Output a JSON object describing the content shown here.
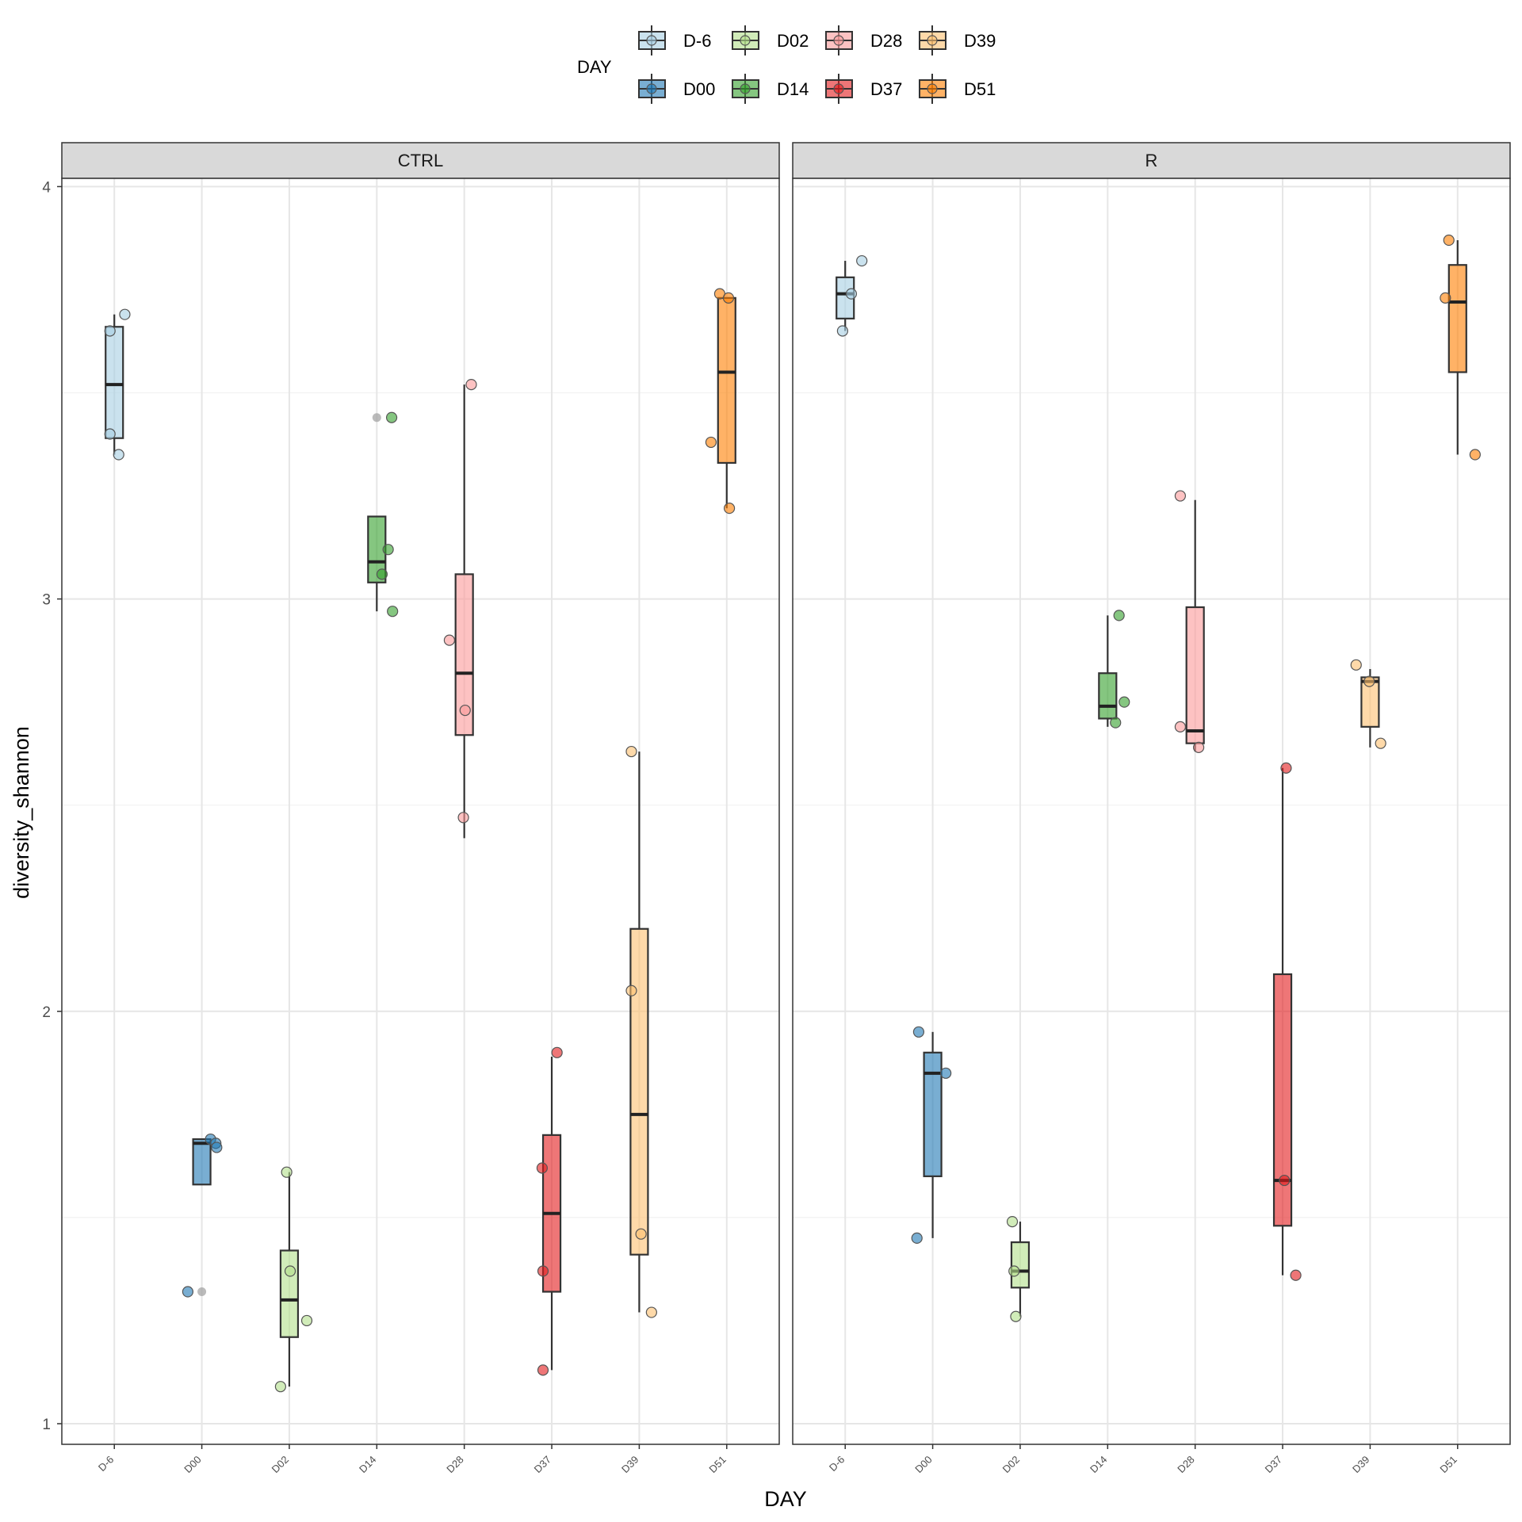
{
  "chart_data": {
    "type": "box",
    "xlabel": "DAY",
    "ylabel": "diversity_shannon",
    "ylim": [
      0.95,
      4.02
    ],
    "yticks": [
      1,
      2,
      3,
      4
    ],
    "grid": true,
    "legend": {
      "title": "DAY",
      "placement": "top",
      "entries": [
        {
          "label": "D-6",
          "color": "#A6CEE3"
        },
        {
          "label": "D02",
          "color": "#B2DF8A"
        },
        {
          "label": "D28",
          "color": "#FB9A99"
        },
        {
          "label": "D39",
          "color": "#FDBF6F"
        },
        {
          "label": "D00",
          "color": "#1F78B4"
        },
        {
          "label": "D14",
          "color": "#33A02C"
        },
        {
          "label": "D37",
          "color": "#E31A1C"
        },
        {
          "label": "D51",
          "color": "#FF7F00"
        }
      ]
    },
    "categories": [
      "D-6",
      "D00",
      "D02",
      "D14",
      "D28",
      "D37",
      "D39",
      "D51"
    ],
    "colors": {
      "D-6": "#A6CEE3",
      "D00": "#1F78B4",
      "D02": "#B2DF8A",
      "D14": "#33A02C",
      "D28": "#FB9A99",
      "D37": "#E31A1C",
      "D39": "#FDBF6F",
      "D51": "#FF7F00"
    },
    "facets": [
      {
        "name": "CTRL",
        "groups": [
          {
            "day": "D-6",
            "lower": 3.35,
            "q1": 3.39,
            "median": 3.52,
            "q3": 3.66,
            "upper": 3.69,
            "outliers": [],
            "points": [
              {
                "dx": -0.05,
                "y": 3.65
              },
              {
                "dx": 0.12,
                "y": 3.69
              },
              {
                "dx": -0.05,
                "y": 3.4
              },
              {
                "dx": 0.05,
                "y": 3.35
              }
            ]
          },
          {
            "day": "D00",
            "lower": 1.58,
            "q1": 1.58,
            "median": 1.68,
            "q3": 1.69,
            "upper": 1.69,
            "outliers": [
              1.32
            ],
            "points": [
              {
                "dx": -0.16,
                "y": 1.32
              },
              {
                "dx": 0.1,
                "y": 1.69
              },
              {
                "dx": 0.16,
                "y": 1.68
              },
              {
                "dx": 0.17,
                "y": 1.67
              }
            ]
          },
          {
            "day": "D02",
            "lower": 1.09,
            "q1": 1.21,
            "median": 1.3,
            "q3": 1.42,
            "upper": 1.61,
            "outliers": [],
            "points": [
              {
                "dx": -0.03,
                "y": 1.61
              },
              {
                "dx": 0.01,
                "y": 1.37
              },
              {
                "dx": 0.2,
                "y": 1.25
              },
              {
                "dx": -0.1,
                "y": 1.09
              }
            ]
          },
          {
            "day": "D14",
            "lower": 2.97,
            "q1": 3.04,
            "median": 3.09,
            "q3": 3.2,
            "upper": 3.2,
            "outliers": [
              3.44
            ],
            "points": [
              {
                "dx": 0.17,
                "y": 3.44
              },
              {
                "dx": 0.13,
                "y": 3.12
              },
              {
                "dx": 0.06,
                "y": 3.06
              },
              {
                "dx": 0.18,
                "y": 2.97
              }
            ]
          },
          {
            "day": "D28",
            "lower": 2.42,
            "q1": 2.67,
            "median": 2.82,
            "q3": 3.06,
            "upper": 3.52,
            "outliers": [],
            "points": [
              {
                "dx": 0.08,
                "y": 3.52
              },
              {
                "dx": -0.17,
                "y": 2.9
              },
              {
                "dx": 0.01,
                "y": 2.73
              },
              {
                "dx": -0.01,
                "y": 2.47
              }
            ]
          },
          {
            "day": "D37",
            "lower": 1.13,
            "q1": 1.32,
            "median": 1.51,
            "q3": 1.7,
            "upper": 1.89,
            "outliers": [],
            "points": [
              {
                "dx": 0.06,
                "y": 1.9
              },
              {
                "dx": -0.11,
                "y": 1.62
              },
              {
                "dx": -0.1,
                "y": 1.37
              },
              {
                "dx": -0.1,
                "y": 1.13
              }
            ]
          },
          {
            "day": "D39",
            "lower": 1.27,
            "q1": 1.41,
            "median": 1.75,
            "q3": 2.2,
            "upper": 2.63,
            "outliers": [],
            "points": [
              {
                "dx": -0.09,
                "y": 2.63
              },
              {
                "dx": -0.09,
                "y": 2.05
              },
              {
                "dx": 0.02,
                "y": 1.46
              },
              {
                "dx": 0.14,
                "y": 1.27
              }
            ]
          },
          {
            "day": "D51",
            "lower": 3.22,
            "q1": 3.33,
            "median": 3.55,
            "q3": 3.73,
            "upper": 3.73,
            "outliers": [],
            "points": [
              {
                "dx": -0.08,
                "y": 3.74
              },
              {
                "dx": 0.02,
                "y": 3.73
              },
              {
                "dx": -0.18,
                "y": 3.38
              },
              {
                "dx": 0.03,
                "y": 3.22
              }
            ]
          }
        ]
      },
      {
        "name": "R",
        "groups": [
          {
            "day": "D-6",
            "lower": 3.65,
            "q1": 3.68,
            "median": 3.74,
            "q3": 3.78,
            "upper": 3.82,
            "outliers": [],
            "points": [
              {
                "dx": 0.19,
                "y": 3.82
              },
              {
                "dx": 0.07,
                "y": 3.74
              },
              {
                "dx": -0.03,
                "y": 3.65
              }
            ]
          },
          {
            "day": "D00",
            "lower": 1.45,
            "q1": 1.6,
            "median": 1.85,
            "q3": 1.9,
            "upper": 1.95,
            "outliers": [],
            "points": [
              {
                "dx": -0.16,
                "y": 1.95
              },
              {
                "dx": 0.15,
                "y": 1.85
              },
              {
                "dx": -0.18,
                "y": 1.45
              }
            ]
          },
          {
            "day": "D02",
            "lower": 1.26,
            "q1": 1.33,
            "median": 1.37,
            "q3": 1.44,
            "upper": 1.49,
            "outliers": [],
            "points": [
              {
                "dx": -0.09,
                "y": 1.49
              },
              {
                "dx": -0.07,
                "y": 1.37
              },
              {
                "dx": -0.05,
                "y": 1.26
              }
            ]
          },
          {
            "day": "D14",
            "lower": 2.69,
            "q1": 2.71,
            "median": 2.74,
            "q3": 2.82,
            "upper": 2.96,
            "outliers": [],
            "points": [
              {
                "dx": 0.13,
                "y": 2.96
              },
              {
                "dx": 0.19,
                "y": 2.75
              },
              {
                "dx": 0.09,
                "y": 2.7
              }
            ]
          },
          {
            "day": "D28",
            "lower": 2.63,
            "q1": 2.65,
            "median": 2.68,
            "q3": 2.98,
            "upper": 3.24,
            "outliers": [],
            "points": [
              {
                "dx": -0.17,
                "y": 3.25
              },
              {
                "dx": -0.17,
                "y": 2.69
              },
              {
                "dx": 0.04,
                "y": 2.64
              }
            ]
          },
          {
            "day": "D37",
            "lower": 1.36,
            "q1": 1.48,
            "median": 1.59,
            "q3": 2.09,
            "upper": 2.59,
            "outliers": [],
            "points": [
              {
                "dx": 0.04,
                "y": 2.59
              },
              {
                "dx": 0.02,
                "y": 1.59
              },
              {
                "dx": 0.15,
                "y": 1.36
              }
            ]
          },
          {
            "day": "D39",
            "lower": 2.64,
            "q1": 2.69,
            "median": 2.8,
            "q3": 2.81,
            "upper": 2.83,
            "outliers": [],
            "points": [
              {
                "dx": -0.16,
                "y": 2.84
              },
              {
                "dx": -0.01,
                "y": 2.8
              },
              {
                "dx": 0.12,
                "y": 2.65
              }
            ]
          },
          {
            "day": "D51",
            "lower": 3.35,
            "q1": 3.55,
            "median": 3.72,
            "q3": 3.81,
            "upper": 3.87,
            "outliers": [],
            "points": [
              {
                "dx": -0.1,
                "y": 3.87
              },
              {
                "dx": -0.14,
                "y": 3.73
              },
              {
                "dx": 0.2,
                "y": 3.35
              }
            ]
          }
        ]
      }
    ]
  }
}
